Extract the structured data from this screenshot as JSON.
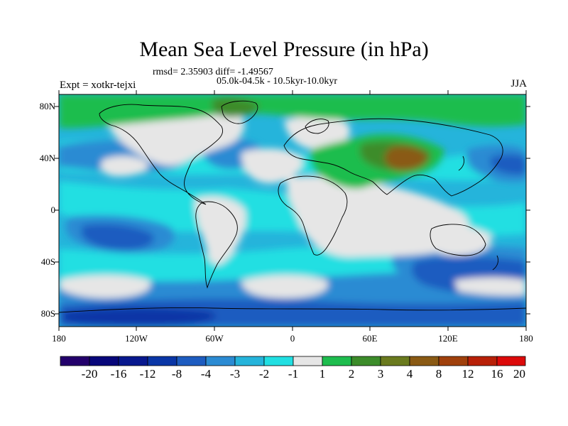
{
  "title": "Mean Sea Level Pressure (in hPa)",
  "stats_line": "rmsd= 2.35903 diff= -1.49567",
  "period_line": "05.0k-04.5k - 10.5kyr-10.0kyr",
  "experiment": "Expt = xotkr-tejxi",
  "season": "JJA",
  "lat_labels": [
    "80N",
    "40N",
    "0",
    "40S",
    "80S"
  ],
  "lon_labels": [
    "180",
    "120W",
    "60W",
    "0",
    "60E",
    "120E",
    "180"
  ],
  "colorbar": {
    "labels": [
      "-20",
      "-16",
      "-12",
      "-8",
      "-4",
      "-3",
      "-2",
      "-1",
      "1",
      "2",
      "3",
      "4",
      "8",
      "12",
      "16",
      "20"
    ],
    "colors": [
      "#23006b",
      "#08077a",
      "#08188e",
      "#0a36a6",
      "#1d5cc0",
      "#2b8bd3",
      "#25b4db",
      "#21dfe2",
      "#e6e6e6",
      "#1ebd4e",
      "#3c8c2a",
      "#6a7a1e",
      "#8a5a14",
      "#a0400c",
      "#b82008",
      "#dc0a0a"
    ]
  },
  "map_colors": {
    "land": "#e6e6e6",
    "ocean_weak": "#21dfe2",
    "ocean_mid": "#25b4db",
    "ocean_strong": "#2b8bd3",
    "ocean_deep": "#1d5cc0",
    "ocean_deepest": "#0a36a6",
    "positive_1": "#1ebd4e",
    "positive_2": "#3c8c2a",
    "positive_3": "#8a5a14"
  }
}
